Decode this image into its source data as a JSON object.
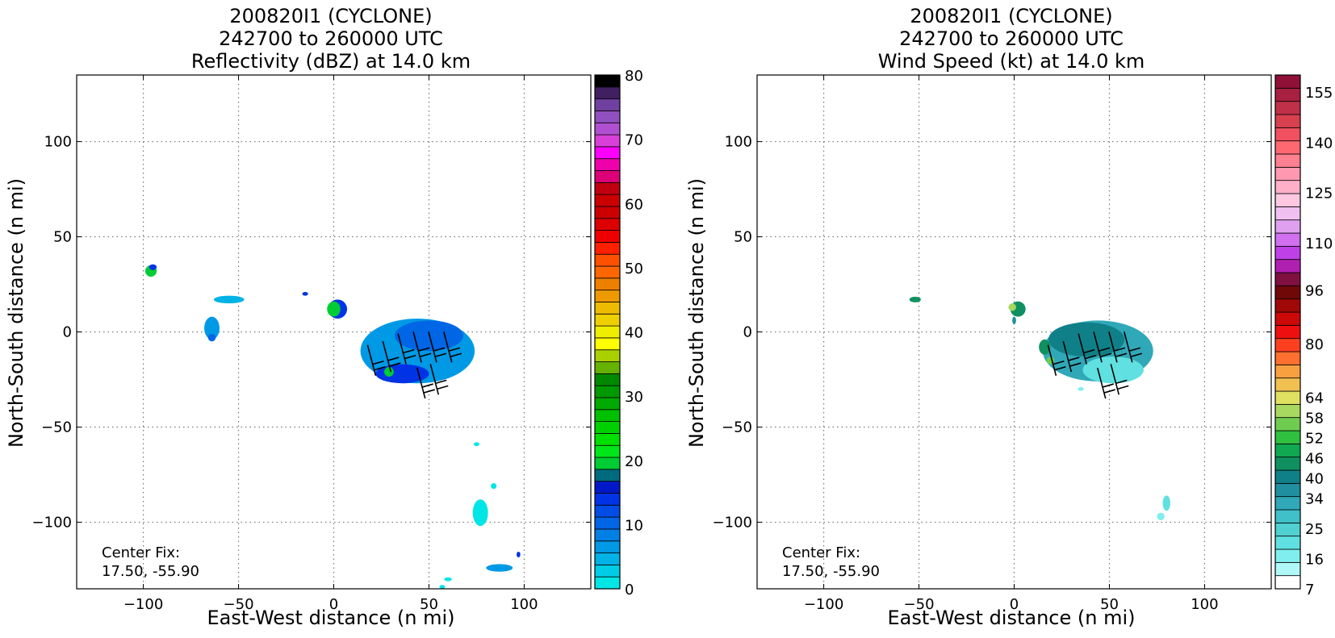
{
  "chart_data": [
    {
      "type": "heatmap",
      "title_lines": [
        "200820I1 (CYCLONE)",
        "242700 to 260000 UTC",
        "Reflectivity (dBZ) at 14.0 km"
      ],
      "xlabel": "East-West distance (n mi)",
      "ylabel": "North-South distance (n mi)",
      "xlim": [
        -135,
        135
      ],
      "ylim": [
        -135,
        135
      ],
      "xticks": [
        -100,
        -50,
        0,
        50,
        100
      ],
      "yticks": [
        -100,
        -50,
        0,
        50,
        100
      ],
      "grid": true,
      "annotation_lines": [
        "Center Fix:",
        "17.50, -55.90"
      ],
      "colorbar": {
        "min": 0,
        "max": 80,
        "ticks": [
          0,
          10,
          20,
          30,
          40,
          50,
          60,
          70,
          80
        ],
        "colors": [
          "#00e5e5",
          "#00cce5",
          "#00b2e5",
          "#0099e5",
          "#007fe5",
          "#0066e5",
          "#004ce5",
          "#0033e5",
          "#0019c8",
          "#006b7f",
          "#00cc33",
          "#00e619",
          "#00e000",
          "#00d000",
          "#00c000",
          "#00aa00",
          "#009900",
          "#008800",
          "#66b200",
          "#aad000",
          "#ffff00",
          "#eeee00",
          "#eed000",
          "#eebb00",
          "#ee9900",
          "#ee8000",
          "#ff6600",
          "#ff5000",
          "#ff2000",
          "#ee0000",
          "#dd0000",
          "#cc0000",
          "#cc0000",
          "#c00010",
          "#dd0077",
          "#ee00aa",
          "#ff00ff",
          "#d840d8",
          "#b050d0",
          "#9050c0",
          "#7040a0",
          "#402060",
          "#000000"
        ]
      },
      "blobs": [
        {
          "cx": -96,
          "cy": 32,
          "rx": 3,
          "ry": 3,
          "color": "#00cc33"
        },
        {
          "cx": -95,
          "cy": 34,
          "rx": 2,
          "ry": 1.5,
          "color": "#0033e5"
        },
        {
          "cx": -55,
          "cy": 17,
          "rx": 8,
          "ry": 2,
          "color": "#00b2e5"
        },
        {
          "cx": -64,
          "cy": 2,
          "rx": 4,
          "ry": 6,
          "color": "#0099e5"
        },
        {
          "cx": -64,
          "cy": -3,
          "rx": 2,
          "ry": 2,
          "color": "#0066e5"
        },
        {
          "cx": -15,
          "cy": 20,
          "rx": 1.5,
          "ry": 1,
          "color": "#0033e5"
        },
        {
          "cx": 2,
          "cy": 12,
          "rx": 5,
          "ry": 5,
          "color": "#0033e5"
        },
        {
          "cx": 0,
          "cy": 12,
          "rx": 3.5,
          "ry": 4,
          "color": "#00cc33"
        },
        {
          "cx": 44,
          "cy": -10,
          "rx": 30,
          "ry": 17,
          "color": "#0099e5"
        },
        {
          "cx": 50,
          "cy": -2,
          "rx": 18,
          "ry": 8,
          "color": "#0066e5"
        },
        {
          "cx": 36,
          "cy": -22,
          "rx": 14,
          "ry": 5,
          "color": "#0033e5"
        },
        {
          "cx": 29,
          "cy": -21,
          "rx": 2.5,
          "ry": 2.5,
          "color": "#00cc33"
        },
        {
          "cx": 75,
          "cy": -59,
          "rx": 1.5,
          "ry": 1,
          "color": "#00e5e5"
        },
        {
          "cx": 77,
          "cy": -95,
          "rx": 4,
          "ry": 7,
          "color": "#00e5e5"
        },
        {
          "cx": 84,
          "cy": -81,
          "rx": 1.5,
          "ry": 1.5,
          "color": "#00e5e5"
        },
        {
          "cx": 87,
          "cy": -124,
          "rx": 7,
          "ry": 2,
          "color": "#0099e5"
        },
        {
          "cx": 97,
          "cy": -117,
          "rx": 1,
          "ry": 1.5,
          "color": "#0033e5"
        },
        {
          "cx": 60,
          "cy": -130,
          "rx": 2,
          "ry": 1,
          "color": "#00e5e5"
        },
        {
          "cx": 57,
          "cy": -134,
          "rx": 1.5,
          "ry": 1,
          "color": "#00e5e5"
        }
      ],
      "barbs": [
        {
          "x": 22,
          "y": -23
        },
        {
          "x": 30,
          "y": -21
        },
        {
          "x": 38,
          "y": -17
        },
        {
          "x": 46,
          "y": -16
        },
        {
          "x": 54,
          "y": -16
        },
        {
          "x": 62,
          "y": -16
        },
        {
          "x": 48,
          "y": -35
        },
        {
          "x": 55,
          "y": -33
        }
      ]
    },
    {
      "type": "heatmap",
      "title_lines": [
        "200820I1 (CYCLONE)",
        "242700 to 260000 UTC",
        "Wind Speed (kt) at 14.0 km"
      ],
      "xlabel": "East-West distance (n mi)",
      "ylabel": "North-South distance (n mi)",
      "xlim": [
        -135,
        135
      ],
      "ylim": [
        -135,
        135
      ],
      "xticks": [
        -100,
        -50,
        0,
        50,
        100
      ],
      "yticks": [
        -100,
        -50,
        0,
        50,
        100
      ],
      "grid": true,
      "annotation_lines": [
        "Center Fix:",
        "17.50, -55.90"
      ],
      "colorbar": {
        "min": 7,
        "max": 160,
        "ticks": [
          7,
          16,
          25,
          34,
          40,
          46,
          52,
          58,
          64,
          80,
          96,
          110,
          125,
          140,
          155
        ],
        "colors": [
          "#ffffff",
          "#b0f8f8",
          "#80eeee",
          "#60e0e0",
          "#50d0d0",
          "#40c0c8",
          "#30a8b8",
          "#2090a0",
          "#108088",
          "#109060",
          "#10a850",
          "#30c040",
          "#70cc50",
          "#a8d860",
          "#e0e060",
          "#f0c050",
          "#f8a040",
          "#ff7030",
          "#ff4020",
          "#ee1010",
          "#cc0808",
          "#a00808",
          "#700808",
          "#801040",
          "#b020b0",
          "#c040e8",
          "#d070f0",
          "#e0a0f0",
          "#f0c0f0",
          "#ffc8e0",
          "#ffb0c8",
          "#ff98b0",
          "#ff8090",
          "#ff6870",
          "#f05060",
          "#d84050",
          "#c03048",
          "#a82040",
          "#901038"
        ]
      },
      "blobs": [
        {
          "cx": -52,
          "cy": 17,
          "rx": 3,
          "ry": 1.5,
          "color": "#109060"
        },
        {
          "cx": 2,
          "cy": 12,
          "rx": 4,
          "ry": 4,
          "color": "#109060"
        },
        {
          "cx": -1,
          "cy": 13,
          "rx": 2,
          "ry": 2,
          "color": "#a8d860"
        },
        {
          "cx": 0,
          "cy": 6,
          "rx": 1,
          "ry": 2,
          "color": "#2090a0"
        },
        {
          "cx": 44,
          "cy": -10,
          "rx": 29,
          "ry": 16,
          "color": "#30a8b8"
        },
        {
          "cx": 38,
          "cy": -4,
          "rx": 20,
          "ry": 9,
          "color": "#108088"
        },
        {
          "cx": 52,
          "cy": -20,
          "rx": 16,
          "ry": 7,
          "color": "#60e0e0"
        },
        {
          "cx": 16,
          "cy": -8,
          "rx": 3,
          "ry": 4,
          "color": "#109060"
        },
        {
          "cx": 19,
          "cy": -15,
          "rx": 2,
          "ry": 2,
          "color": "#70cc50"
        },
        {
          "cx": 80,
          "cy": -90,
          "rx": 2,
          "ry": 4,
          "color": "#60e0e0"
        },
        {
          "cx": 77,
          "cy": -97,
          "rx": 2,
          "ry": 2,
          "color": "#80eeee"
        },
        {
          "cx": 35,
          "cy": -30,
          "rx": 1.5,
          "ry": 1,
          "color": "#80eeee"
        }
      ],
      "barbs": [
        {
          "x": 22,
          "y": -23
        },
        {
          "x": 30,
          "y": -21
        },
        {
          "x": 38,
          "y": -17
        },
        {
          "x": 46,
          "y": -16
        },
        {
          "x": 54,
          "y": -16
        },
        {
          "x": 62,
          "y": -16
        },
        {
          "x": 48,
          "y": -35
        },
        {
          "x": 55,
          "y": -33
        }
      ]
    }
  ]
}
